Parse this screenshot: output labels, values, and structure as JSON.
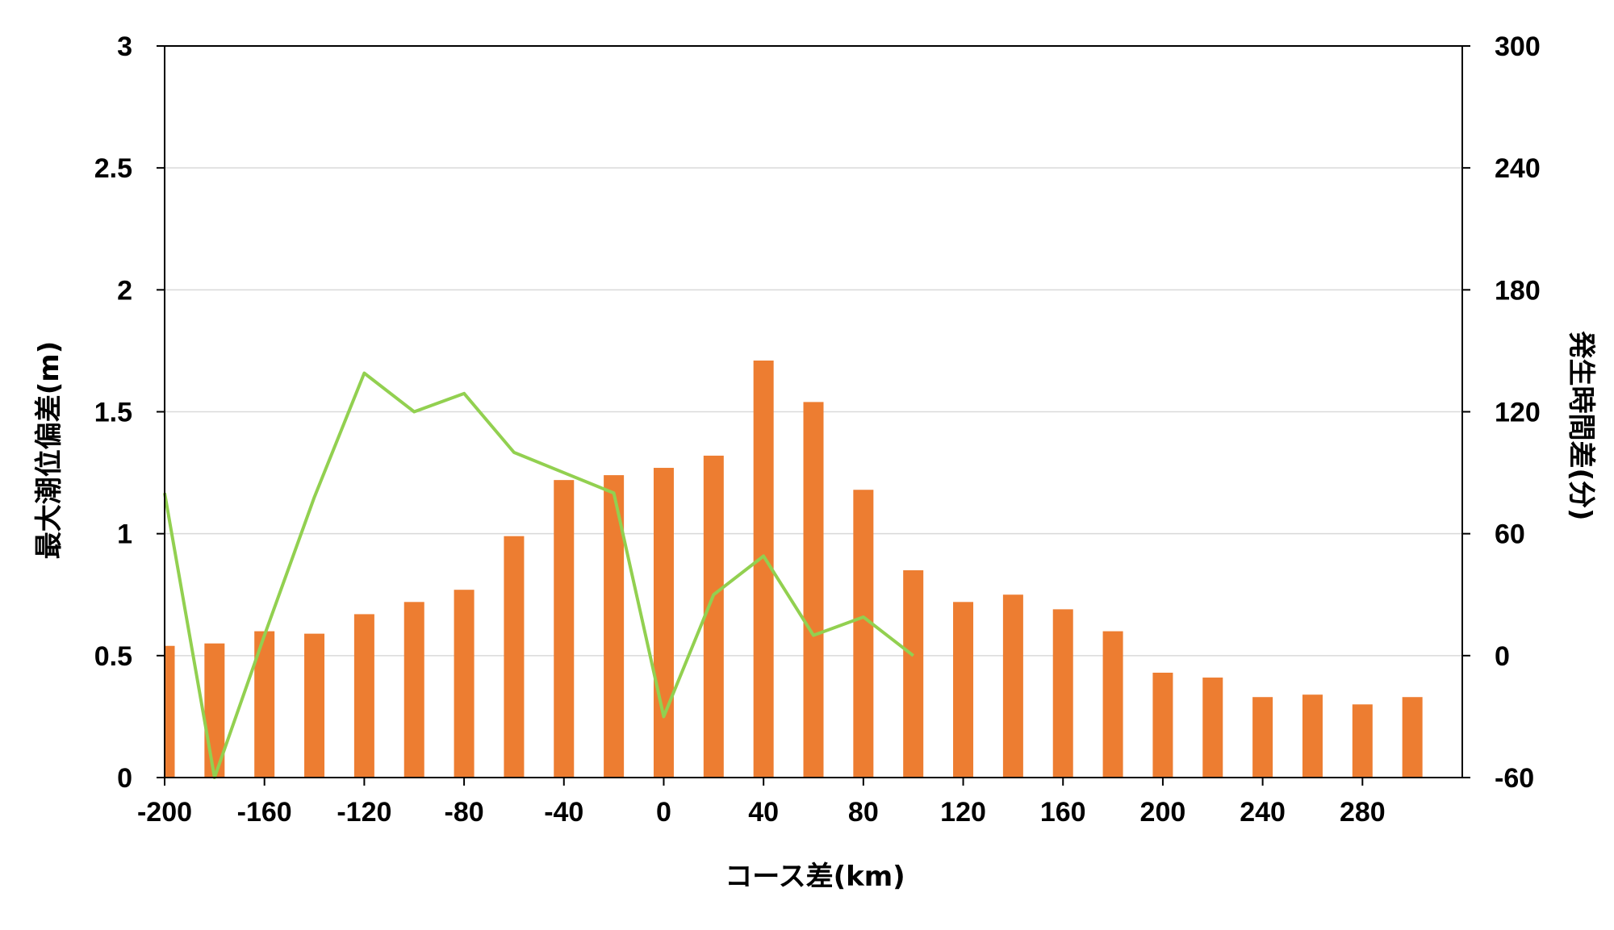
{
  "chart_data": {
    "type": "bar",
    "xlabel": "コース差(km)",
    "ylabel": "最大潮位偏差(m)",
    "y2label": "発生時間差(分)",
    "xlim": [
      -200,
      320
    ],
    "xticks": [
      -200,
      -160,
      -120,
      -80,
      -40,
      0,
      40,
      80,
      120,
      160,
      200,
      240,
      280
    ],
    "ylim": [
      0,
      3
    ],
    "yticks": [
      "0",
      "0.5",
      "1",
      "1.5",
      "2",
      "2.5",
      "3"
    ],
    "y2lim": [
      -60,
      300
    ],
    "y2ticks": [
      "-60",
      "0",
      "60",
      "120",
      "180",
      "240",
      "300"
    ],
    "grid": true,
    "bar_color": "#ED7D31",
    "line_color": "#92D050",
    "bars": {
      "x": [
        -200,
        -180,
        -160,
        -140,
        -120,
        -100,
        -80,
        -60,
        -40,
        -20,
        0,
        20,
        40,
        60,
        80,
        100,
        120,
        140,
        160,
        180,
        200,
        220,
        240,
        260,
        280,
        300
      ],
      "values": [
        0.54,
        0.55,
        0.6,
        0.59,
        0.67,
        0.72,
        0.77,
        0.99,
        1.22,
        1.24,
        1.27,
        1.32,
        1.71,
        1.54,
        1.18,
        0.85,
        0.72,
        0.75,
        0.69,
        0.6,
        0.43,
        0.41,
        0.33,
        0.34,
        0.3,
        0.33
      ]
    },
    "line": {
      "x": [
        -200,
        -180,
        -160,
        -140,
        -120,
        -100,
        -80,
        -60,
        -40,
        -20,
        0,
        20,
        40,
        60,
        80,
        100
      ],
      "values": [
        80,
        -60,
        10,
        78,
        139,
        120,
        129,
        100,
        90,
        80,
        -30,
        30,
        49,
        10,
        19,
        0
      ]
    }
  }
}
